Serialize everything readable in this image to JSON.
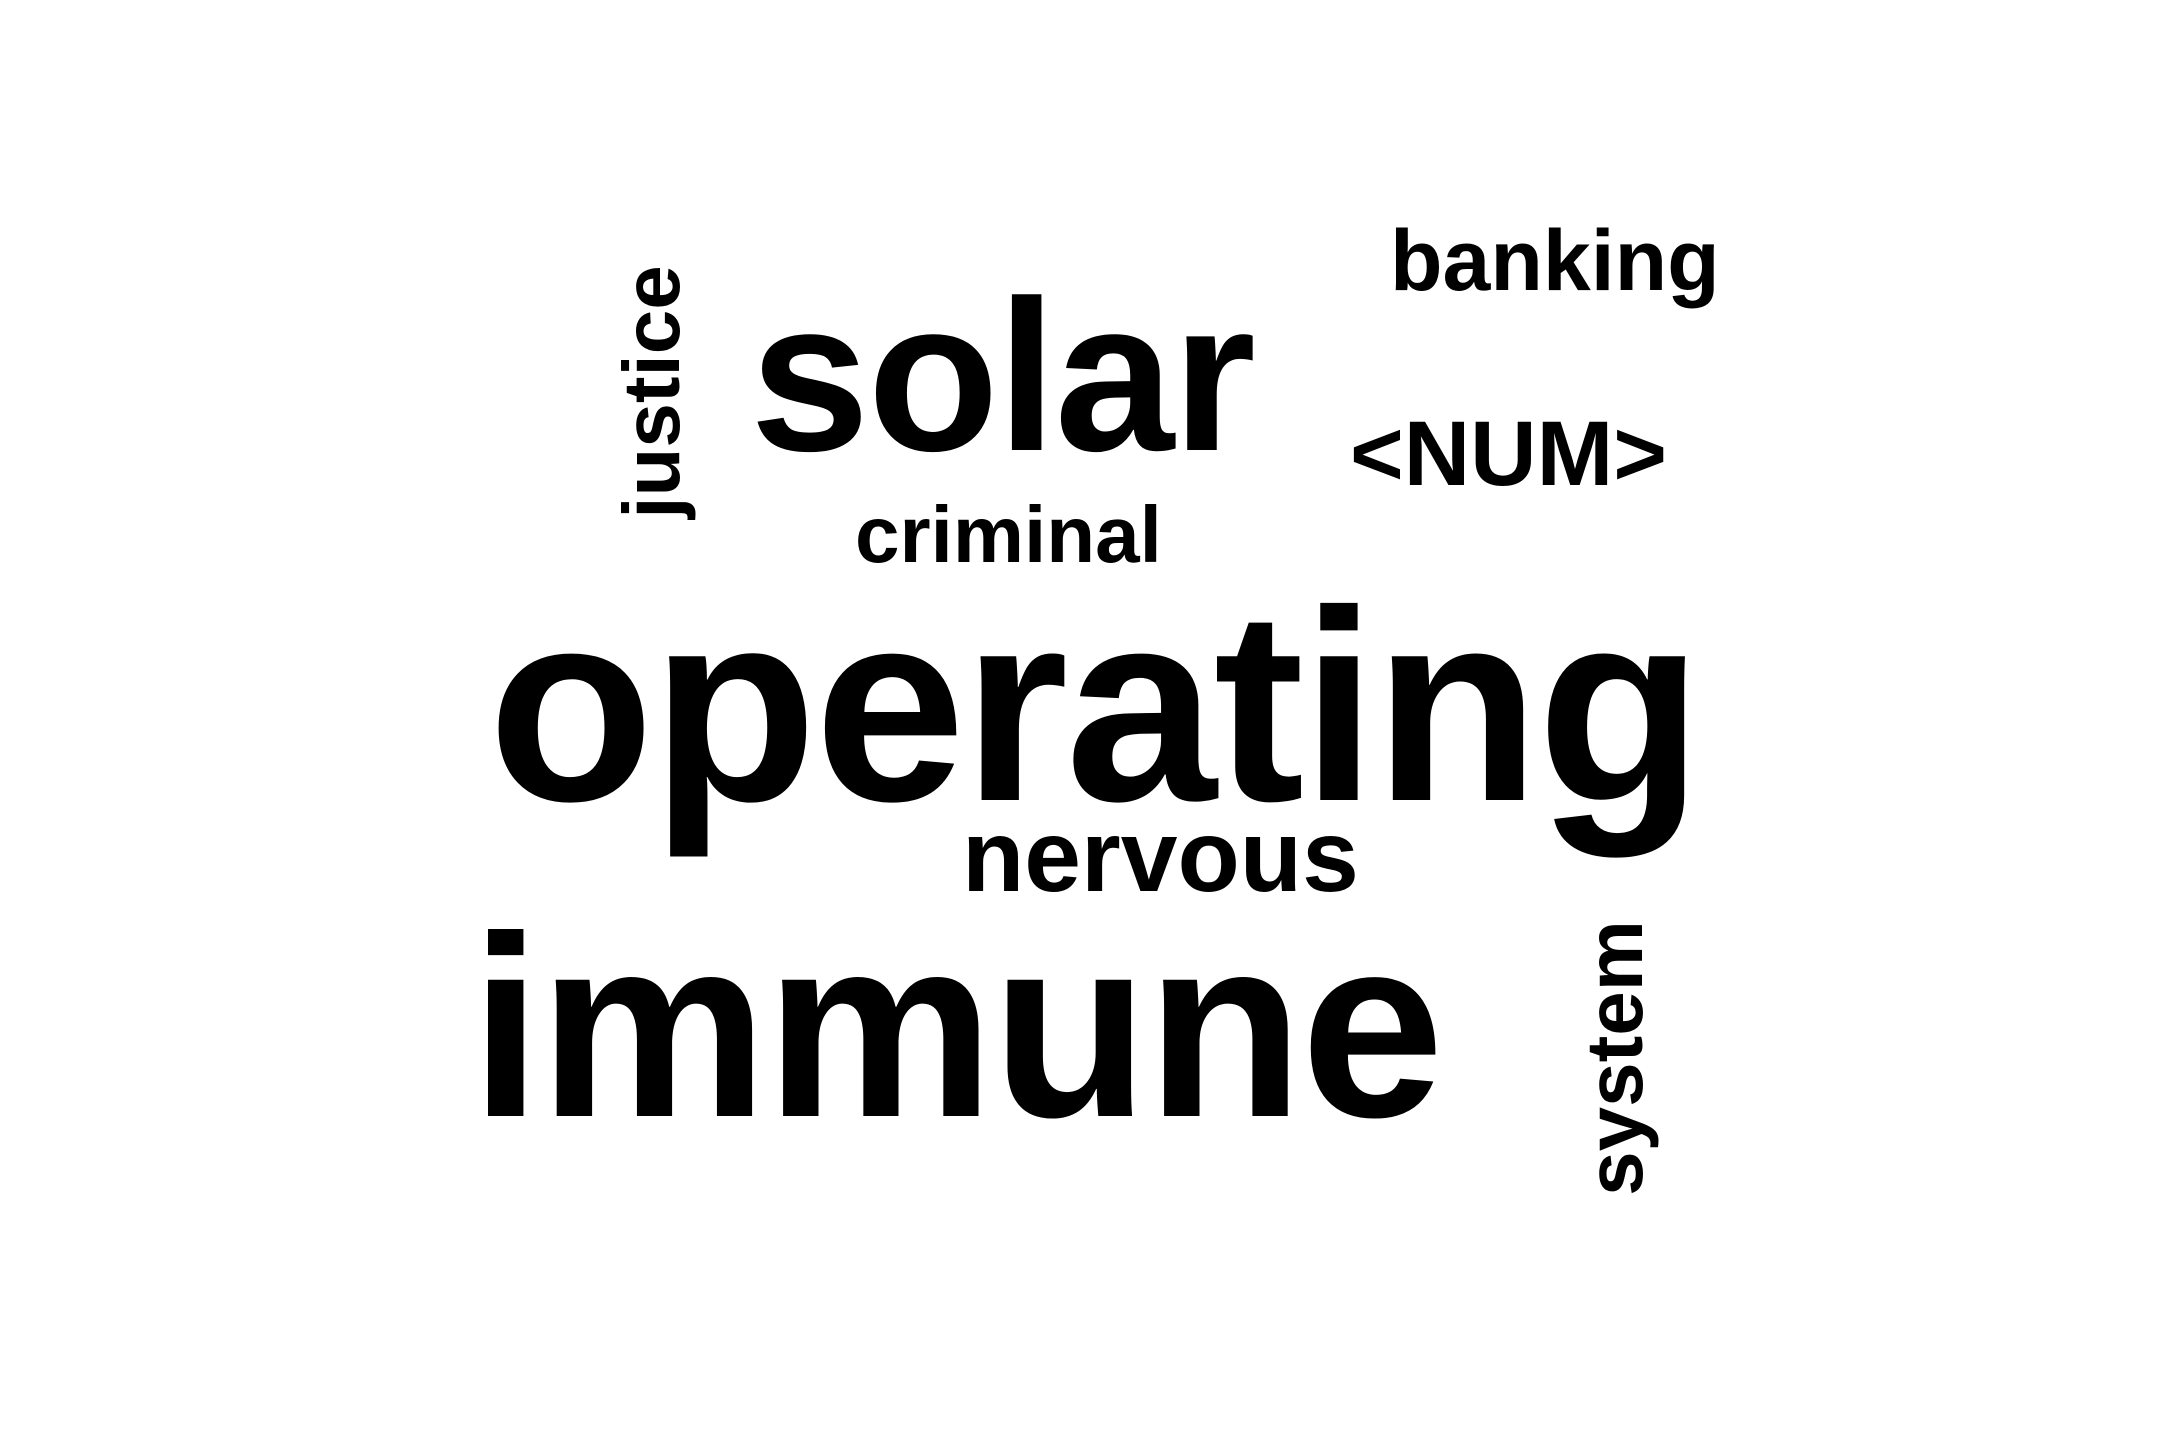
{
  "words": {
    "solar": "solar",
    "banking": "banking",
    "num": "<NUM>",
    "criminal": "criminal",
    "operating": "operating",
    "nervous": "nervous",
    "immune": "immune",
    "justice": "justice",
    "system": "system"
  },
  "colors": {
    "background": "#ffffff",
    "text": "#000000"
  }
}
